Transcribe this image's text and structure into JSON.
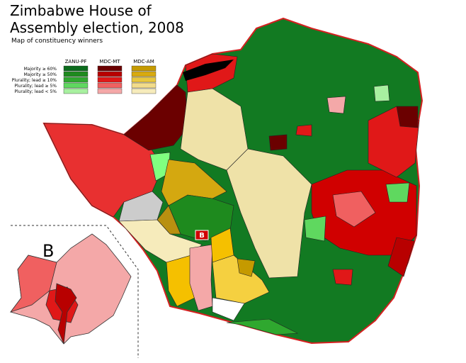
{
  "title_lines": [
    "Zimbabwe House of",
    "Assembly election, 2008"
  ],
  "subtitle": "Map of constituency winners",
  "legend": {
    "columns": [
      "ZANU-PF",
      "MDC-MT",
      "MDC-AM"
    ],
    "rows": [
      "Majority ≥ 60%",
      "Majority ≥ 50%",
      "Plurality; lead ≥ 10%",
      "Plurality; lead ≥ 5%",
      "Plurality; lead < 5%"
    ],
    "colors": [
      [
        "#0b6b1c",
        "#6b0000",
        "#c59a00"
      ],
      [
        "#1e8a1e",
        "#b80000",
        "#d8aa10"
      ],
      [
        "#2fa82f",
        "#e01818",
        "#e8c840"
      ],
      [
        "#5fd85f",
        "#f06060",
        "#f2dc8a"
      ],
      [
        "#a8f0a0",
        "#f4a8a8",
        "#f6ebbb"
      ]
    ]
  },
  "inset_label": "B",
  "map_marker": "B"
}
